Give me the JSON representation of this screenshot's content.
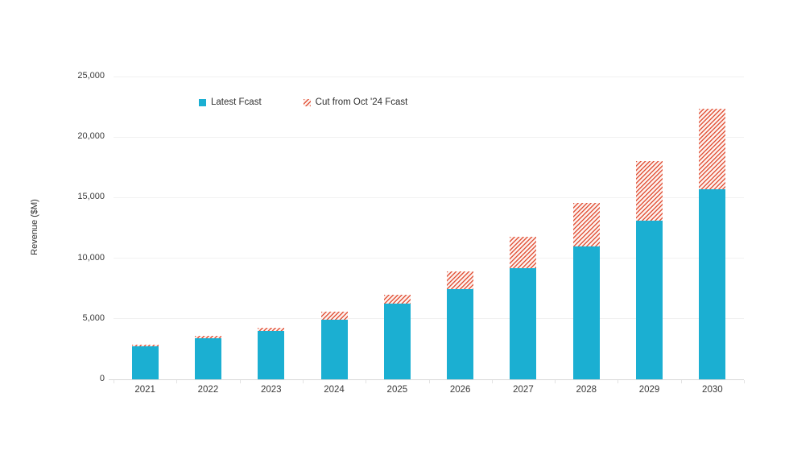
{
  "chart_data": {
    "type": "bar",
    "stacked": true,
    "title": "",
    "xlabel": "",
    "ylabel": "Revenue ($M)",
    "ylim": [
      0,
      25000
    ],
    "ytick_interval": 5000,
    "yticks": [
      {
        "value": 0,
        "label": "0"
      },
      {
        "value": 5000,
        "label": "5,000"
      },
      {
        "value": 10000,
        "label": "10,000"
      },
      {
        "value": 15000,
        "label": "15,000"
      },
      {
        "value": 20000,
        "label": "20,000"
      },
      {
        "value": 25000,
        "label": "25,000"
      }
    ],
    "grid": true,
    "legend_position": "inside-top-left",
    "categories": [
      "2021",
      "2022",
      "2023",
      "2024",
      "2025",
      "2026",
      "2027",
      "2028",
      "2029",
      "2030"
    ],
    "series": [
      {
        "name": "Latest Fcast",
        "style": "solid",
        "color": "#1bafd2",
        "values": [
          2700,
          3400,
          4000,
          4950,
          6250,
          7450,
          9200,
          10950,
          13100,
          15700
        ]
      },
      {
        "name": "Cut from Oct '24 Fcast",
        "style": "hatched",
        "color": "#e2573e",
        "hatch_bg": "#fdf2ef",
        "values": [
          150,
          200,
          250,
          650,
          750,
          1450,
          2600,
          3600,
          4900,
          6650
        ]
      }
    ]
  },
  "colors": {
    "background": "#ffffff",
    "gridline": "#f1f1f1",
    "axis_line": "#d8d8d8",
    "tick_text": "#3a3a3a",
    "legend_text": "#303030"
  }
}
